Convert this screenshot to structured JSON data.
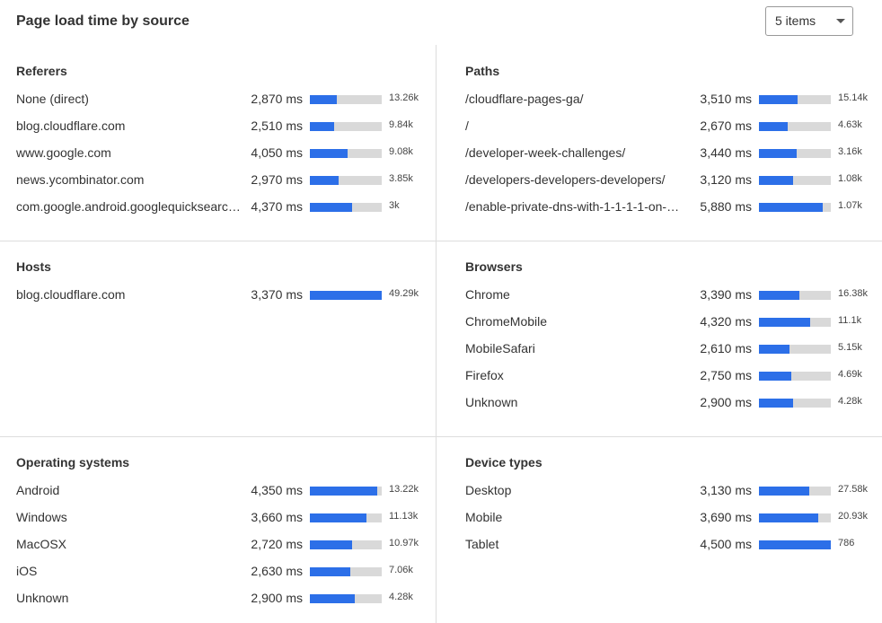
{
  "header": {
    "title": "Page load time by source",
    "select": "5 items"
  },
  "panels": [
    {
      "title": "Referers",
      "rows": [
        {
          "label": "None (direct)",
          "time": "2,870 ms",
          "bar": 38,
          "count": "13.26k"
        },
        {
          "label": "blog.cloudflare.com",
          "time": "2,510 ms",
          "bar": 34,
          "count": "9.84k"
        },
        {
          "label": "www.google.com",
          "time": "4,050 ms",
          "bar": 53,
          "count": "9.08k"
        },
        {
          "label": "news.ycombinator.com",
          "time": "2,970 ms",
          "bar": 40,
          "count": "3.85k"
        },
        {
          "label": "com.google.android.googlequicksearc…",
          "time": "4,370 ms",
          "bar": 59,
          "count": "3k"
        }
      ]
    },
    {
      "title": "Paths",
      "rows": [
        {
          "label": "/cloudflare-pages-ga/",
          "time": "3,510 ms",
          "bar": 54,
          "count": "15.14k"
        },
        {
          "label": "/",
          "time": "2,670 ms",
          "bar": 40,
          "count": "4.63k"
        },
        {
          "label": "/developer-week-challenges/",
          "time": "3,440 ms",
          "bar": 53,
          "count": "3.16k"
        },
        {
          "label": "/developers-developers-developers/",
          "time": "3,120 ms",
          "bar": 48,
          "count": "1.08k"
        },
        {
          "label": "/enable-private-dns-with-1-1-1-1-on-…",
          "time": "5,880 ms",
          "bar": 89,
          "count": "1.07k"
        }
      ]
    },
    {
      "title": "Hosts",
      "rows": [
        {
          "label": "blog.cloudflare.com",
          "time": "3,370 ms",
          "bar": 100,
          "count": "49.29k"
        }
      ]
    },
    {
      "title": "Browsers",
      "rows": [
        {
          "label": "Chrome",
          "time": "3,390 ms",
          "bar": 56,
          "count": "16.38k"
        },
        {
          "label": "ChromeMobile",
          "time": "4,320 ms",
          "bar": 71,
          "count": "11.1k"
        },
        {
          "label": "MobileSafari",
          "time": "2,610 ms",
          "bar": 43,
          "count": "5.15k"
        },
        {
          "label": "Firefox",
          "time": "2,750 ms",
          "bar": 45,
          "count": "4.69k"
        },
        {
          "label": "Unknown",
          "time": "2,900 ms",
          "bar": 48,
          "count": "4.28k"
        }
      ]
    },
    {
      "title": "Operating systems",
      "rows": [
        {
          "label": "Android",
          "time": "4,350 ms",
          "bar": 94,
          "count": "13.22k"
        },
        {
          "label": "Windows",
          "time": "3,660 ms",
          "bar": 79,
          "count": "11.13k"
        },
        {
          "label": "MacOSX",
          "time": "2,720 ms",
          "bar": 59,
          "count": "10.97k"
        },
        {
          "label": "iOS",
          "time": "2,630 ms",
          "bar": 56,
          "count": "7.06k"
        },
        {
          "label": "Unknown",
          "time": "2,900 ms",
          "bar": 63,
          "count": "4.28k"
        }
      ]
    },
    {
      "title": "Device types",
      "rows": [
        {
          "label": "Desktop",
          "time": "3,130 ms",
          "bar": 70,
          "count": "27.58k"
        },
        {
          "label": "Mobile",
          "time": "3,690 ms",
          "bar": 83,
          "count": "20.93k"
        },
        {
          "label": "Tablet",
          "time": "4,500 ms",
          "bar": 100,
          "count": "786"
        }
      ]
    }
  ]
}
